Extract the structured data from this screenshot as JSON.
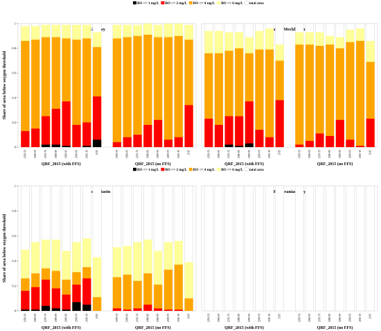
{
  "legend": {
    "items": [
      {
        "label": "BO <= 1 mg/L",
        "color": "#000000"
      },
      {
        "label": "BO <= 2 mg/L",
        "color": "#ff0000"
      },
      {
        "label": "BO <= 4 mg/L",
        "color": "#ffa500"
      },
      {
        "label": "BO <= 6 mg/L",
        "color": "#ffff99"
      },
      {
        "label": "total area",
        "color": "#ffffff"
      }
    ]
  },
  "y_axis_label": "Share of area below oxygen threshold",
  "y_ticks": [
    "0",
    "0.2",
    "0.4",
    "0.6",
    "0.8",
    "1"
  ],
  "group_labels": [
    "QRF_2015 (with FFS)",
    "QRF_2015 (no FFS)"
  ],
  "chart_data": [
    {
      "type": "bar",
      "title": "Kiel Bay",
      "ylim": [
        0,
        1
      ],
      "categories": [
        "1950-59",
        "1960-69",
        "1970-79",
        "1980-89",
        "1990-99",
        "2000-09",
        "2010-19",
        "2015"
      ],
      "groups": [
        {
          "name": "QRF_2015 (with FFS)",
          "series": [
            {
              "name": "BO <= 1 mg/L",
              "values": [
                0.0,
                0.0,
                0.02,
                0.02,
                0.01,
                0.0,
                0.01,
                0.06
              ]
            },
            {
              "name": "BO <= 2 mg/L",
              "values": [
                0.13,
                0.15,
                0.25,
                0.31,
                0.37,
                0.18,
                0.2,
                0.41
              ]
            },
            {
              "name": "BO <= 4 mg/L",
              "values": [
                0.86,
                0.87,
                0.89,
                0.89,
                0.88,
                0.87,
                0.88,
                0.81
              ]
            },
            {
              "name": "BO <= 6 mg/L",
              "values": [
                0.98,
                0.98,
                0.99,
                0.99,
                0.99,
                0.99,
                0.99,
                0.93
              ]
            },
            {
              "name": "total area",
              "values": [
                1,
                1,
                1,
                1,
                1,
                1,
                1,
                1
              ]
            }
          ]
        },
        {
          "name": "QRF_2015 (no FFS)",
          "series": [
            {
              "name": "BO <= 1 mg/L",
              "values": [
                0,
                0,
                0,
                0,
                0,
                0,
                0,
                0
              ]
            },
            {
              "name": "BO <= 2 mg/L",
              "values": [
                0.04,
                0.08,
                0.1,
                0.18,
                0.22,
                0.06,
                0.08,
                0.34
              ]
            },
            {
              "name": "BO <= 4 mg/L",
              "values": [
                0.88,
                0.89,
                0.9,
                0.91,
                0.89,
                0.89,
                0.9,
                0.87
              ]
            },
            {
              "name": "BO <= 6 mg/L",
              "values": [
                0.99,
                0.99,
                0.99,
                1.0,
                0.99,
                1.0,
                1.0,
                0.99
              ]
            },
            {
              "name": "total area",
              "values": [
                1,
                1,
                1,
                1,
                1,
                1,
                1,
                1
              ]
            }
          ]
        }
      ]
    },
    {
      "type": "bar",
      "title": "Bay of Mecklenburg",
      "ylim": [
        0,
        1
      ],
      "categories": [
        "1950-59",
        "1960-69",
        "1970-79",
        "1980-89",
        "1990-99",
        "2000-09",
        "2010-19",
        "2015"
      ],
      "groups": [
        {
          "name": "QRF_2015 (with FFS)",
          "series": [
            {
              "name": "BO <= 1 mg/L",
              "values": [
                0.0,
                0.0,
                0.02,
                0.01,
                0.03,
                0.0,
                0.0,
                0.0
              ]
            },
            {
              "name": "BO <= 2 mg/L",
              "values": [
                0.23,
                0.18,
                0.25,
                0.25,
                0.37,
                0.14,
                0.08,
                0.38
              ]
            },
            {
              "name": "BO <= 4 mg/L",
              "values": [
                0.76,
                0.76,
                0.78,
                0.8,
                0.76,
                0.79,
                0.79,
                0.7
              ]
            },
            {
              "name": "BO <= 6 mg/L",
              "values": [
                0.94,
                0.94,
                0.93,
                0.93,
                0.89,
                0.94,
                0.96,
                0.83
              ]
            },
            {
              "name": "total area",
              "values": [
                1,
                1,
                1,
                1,
                1,
                1,
                1,
                1
              ]
            }
          ]
        },
        {
          "name": "QRF_2015 (no FFS)",
          "series": [
            {
              "name": "BO <= 1 mg/L",
              "values": [
                0,
                0,
                0,
                0,
                0,
                0,
                0,
                0
              ]
            },
            {
              "name": "BO <= 2 mg/L",
              "values": [
                0.02,
                0.05,
                0.11,
                0.09,
                0.22,
                0.06,
                0.01,
                0.23
              ]
            },
            {
              "name": "BO <= 4 mg/L",
              "values": [
                0.83,
                0.83,
                0.82,
                0.83,
                0.8,
                0.85,
                0.86,
                0.69
              ]
            },
            {
              "name": "BO <= 6 mg/L",
              "values": [
                0.93,
                0.93,
                0.93,
                0.9,
                0.89,
                0.95,
                0.96,
                0.86
              ]
            },
            {
              "name": "total area",
              "values": [
                1,
                1,
                1,
                1,
                1,
                1,
                1,
                1
              ]
            }
          ]
        }
      ]
    },
    {
      "type": "bar",
      "title": "Arkona Basin",
      "ylim": [
        0,
        1
      ],
      "categories": [
        "1950-59",
        "1960-69",
        "1970-79",
        "1980-89",
        "1990-99",
        "2000-09",
        "2010-19",
        "2015"
      ],
      "groups": [
        {
          "name": "QRF_2015 (with FFS)",
          "series": [
            {
              "name": "BO <= 1 mg/L",
              "values": [
                0.01,
                0.01,
                0.04,
                0.02,
                0.01,
                0.07,
                0.05,
                0.0
              ]
            },
            {
              "name": "BO <= 2 mg/L",
              "values": [
                0.16,
                0.19,
                0.25,
                0.18,
                0.13,
                0.21,
                0.26,
                0.0
              ]
            },
            {
              "name": "BO <= 4 mg/L",
              "values": [
                0.26,
                0.3,
                0.34,
                0.32,
                0.25,
                0.31,
                0.35,
                0.11
              ]
            },
            {
              "name": "BO <= 6 mg/L",
              "values": [
                0.49,
                0.55,
                0.57,
                0.57,
                0.48,
                0.55,
                0.58,
                0.43
              ]
            },
            {
              "name": "total area",
              "values": [
                1,
                1,
                1,
                1,
                1,
                1,
                1,
                1
              ]
            }
          ]
        },
        {
          "name": "QRF_2015 (no FFS)",
          "series": [
            {
              "name": "BO <= 1 mg/L",
              "values": [
                0,
                0,
                0,
                0,
                0,
                0,
                0,
                0
              ]
            },
            {
              "name": "BO <= 2 mg/L",
              "values": [
                0.02,
                0.01,
                0.02,
                0.05,
                0.02,
                0.01,
                0.01,
                0.0
              ]
            },
            {
              "name": "BO <= 4 mg/L",
              "values": [
                0.27,
                0.29,
                0.24,
                0.3,
                0.21,
                0.33,
                0.37,
                0.1
              ]
            },
            {
              "name": "BO <= 6 mg/L",
              "values": [
                0.51,
                0.52,
                0.55,
                0.57,
                0.48,
                0.55,
                0.56,
                0.39
              ]
            },
            {
              "name": "total area",
              "values": [
                1,
                1,
                1,
                1,
                1,
                1,
                1,
                1
              ]
            }
          ]
        }
      ]
    },
    {
      "type": "bar",
      "title": "Pomeranian Bay",
      "ylim": [
        0,
        1
      ],
      "categories": [
        "1950-59",
        "1960-69",
        "1970-79",
        "1980-89",
        "1990-99",
        "2000-09",
        "2010-19",
        "2015"
      ],
      "groups": [
        {
          "name": "QRF_2015 (with FFS)",
          "series": [
            {
              "name": "BO <= 1 mg/L",
              "values": [
                0,
                0,
                0,
                0,
                0,
                0,
                0,
                0
              ]
            },
            {
              "name": "BO <= 2 mg/L",
              "values": [
                0,
                0,
                0,
                0,
                0,
                0,
                0,
                0
              ]
            },
            {
              "name": "BO <= 4 mg/L",
              "values": [
                0,
                0,
                0,
                0,
                0,
                0,
                0,
                0
              ]
            },
            {
              "name": "BO <= 6 mg/L",
              "values": [
                0,
                0,
                0,
                0,
                0,
                0,
                0,
                0
              ]
            },
            {
              "name": "total area",
              "values": [
                1,
                1,
                1,
                1,
                1,
                1,
                1,
                1
              ]
            }
          ]
        },
        {
          "name": "QRF_2015 (no FFS)",
          "series": [
            {
              "name": "BO <= 1 mg/L",
              "values": [
                0,
                0,
                0,
                0,
                0,
                0,
                0,
                0
              ]
            },
            {
              "name": "BO <= 2 mg/L",
              "values": [
                0,
                0,
                0,
                0,
                0,
                0,
                0,
                0
              ]
            },
            {
              "name": "BO <= 4 mg/L",
              "values": [
                0,
                0,
                0,
                0,
                0,
                0,
                0,
                0
              ]
            },
            {
              "name": "BO <= 6 mg/L",
              "values": [
                0,
                0,
                0,
                0,
                0,
                0,
                0,
                0
              ]
            },
            {
              "name": "total area",
              "values": [
                1,
                1,
                1,
                1,
                1,
                1,
                1,
                1
              ]
            }
          ]
        }
      ]
    }
  ]
}
